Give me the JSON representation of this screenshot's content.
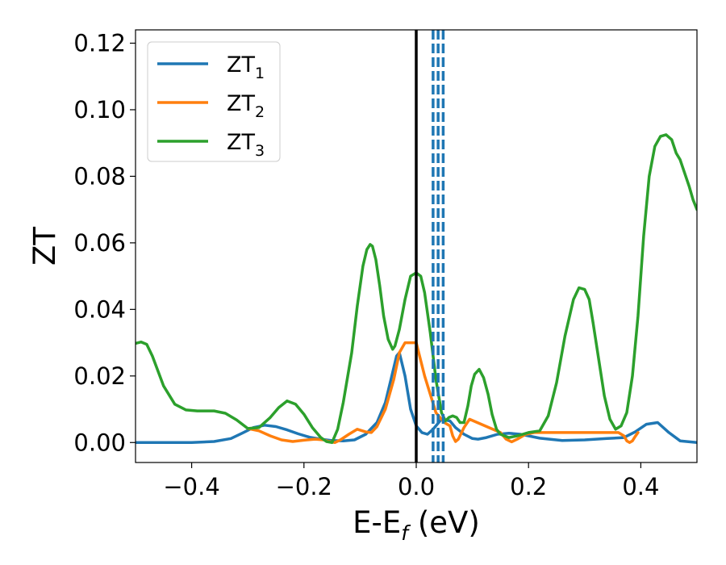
{
  "chart_data": {
    "type": "line",
    "xlabel": {
      "main": "E-E",
      "sub": "f",
      "unit": " (eV)"
    },
    "ylabel": "ZT",
    "xlim": [
      -0.5,
      0.5
    ],
    "ylim": [
      -0.006,
      0.124
    ],
    "xticks": [
      -0.4,
      -0.2,
      0.0,
      0.2,
      0.4
    ],
    "xtick_labels": [
      "−0.4",
      "−0.2",
      "0.0",
      "0.2",
      "0.4"
    ],
    "yticks": [
      0.0,
      0.02,
      0.04,
      0.06,
      0.08,
      0.1,
      0.12
    ],
    "ytick_labels": [
      "0.00",
      "0.02",
      "0.04",
      "0.06",
      "0.08",
      "0.10",
      "0.12"
    ],
    "grid": false,
    "legend": {
      "position": "top-left"
    },
    "series": [
      {
        "name": "ZT",
        "name_sub": "1",
        "color": "#1f77b4",
        "x": [
          -0.5,
          -0.45,
          -0.4,
          -0.36,
          -0.33,
          -0.31,
          -0.29,
          -0.27,
          -0.25,
          -0.23,
          -0.21,
          -0.19,
          -0.17,
          -0.15,
          -0.13,
          -0.11,
          -0.09,
          -0.07,
          -0.055,
          -0.045,
          -0.035,
          -0.03,
          -0.02,
          -0.01,
          0.0,
          0.01,
          0.02,
          0.03,
          0.045,
          0.06,
          0.07,
          0.085,
          0.1,
          0.11,
          0.125,
          0.145,
          0.165,
          0.185,
          0.2,
          0.22,
          0.26,
          0.3,
          0.34,
          0.37,
          0.39,
          0.41,
          0.43,
          0.45,
          0.47,
          0.5
        ],
        "y": [
          0.0,
          0.0,
          0.0,
          0.0003,
          0.0012,
          0.0028,
          0.0045,
          0.0052,
          0.0048,
          0.0038,
          0.0026,
          0.0016,
          0.001,
          0.0006,
          0.0005,
          0.0008,
          0.0025,
          0.006,
          0.012,
          0.019,
          0.026,
          0.027,
          0.02,
          0.01,
          0.005,
          0.003,
          0.0025,
          0.004,
          0.007,
          0.0065,
          0.0045,
          0.0025,
          0.0012,
          0.001,
          0.0015,
          0.0025,
          0.0028,
          0.0025,
          0.002,
          0.0013,
          0.0006,
          0.0008,
          0.0012,
          0.0015,
          0.0032,
          0.0055,
          0.006,
          0.003,
          0.0005,
          0.0
        ]
      },
      {
        "name": "ZT",
        "name_sub": "2",
        "color": "#ff7f0e",
        "x": [
          -0.3,
          -0.28,
          -0.26,
          -0.24,
          -0.22,
          -0.2,
          -0.18,
          -0.165,
          -0.155,
          -0.145,
          -0.135,
          -0.12,
          -0.105,
          -0.09,
          -0.08,
          -0.07,
          -0.055,
          -0.04,
          -0.03,
          -0.02,
          -0.01,
          0.0,
          0.015,
          0.035,
          0.05,
          0.06,
          0.065,
          0.07,
          0.075,
          0.085,
          0.095,
          0.15,
          0.16,
          0.17,
          0.18,
          0.195,
          0.21,
          0.36,
          0.37,
          0.375,
          0.38,
          0.385,
          0.39,
          0.395
        ],
        "y": [
          0.0042,
          0.0035,
          0.002,
          0.0008,
          0.0003,
          0.0007,
          0.001,
          0.0008,
          0.0003,
          0.0,
          0.0008,
          0.0025,
          0.004,
          0.0032,
          0.003,
          0.0048,
          0.01,
          0.019,
          0.027,
          0.03,
          0.03,
          0.03,
          0.02,
          0.009,
          0.006,
          0.005,
          0.002,
          0.0003,
          0.001,
          0.0045,
          0.007,
          0.003,
          0.001,
          0.0002,
          0.001,
          0.0025,
          0.003,
          0.003,
          0.002,
          0.0005,
          0.0,
          0.0005,
          0.0018,
          0.003
        ]
      },
      {
        "name": "ZT",
        "name_sub": "3",
        "color": "#2ca02c",
        "x": [
          -0.5,
          -0.49,
          -0.48,
          -0.47,
          -0.45,
          -0.43,
          -0.41,
          -0.39,
          -0.36,
          -0.34,
          -0.32,
          -0.3,
          -0.28,
          -0.26,
          -0.245,
          -0.23,
          -0.215,
          -0.2,
          -0.185,
          -0.17,
          -0.16,
          -0.15,
          -0.14,
          -0.13,
          -0.115,
          -0.105,
          -0.095,
          -0.088,
          -0.082,
          -0.078,
          -0.072,
          -0.065,
          -0.058,
          -0.05,
          -0.042,
          -0.038,
          -0.03,
          -0.02,
          -0.01,
          0.0,
          0.008,
          0.015,
          0.025,
          0.035,
          0.045,
          0.052,
          0.058,
          0.065,
          0.072,
          0.078,
          0.085,
          0.092,
          0.098,
          0.104,
          0.112,
          0.12,
          0.128,
          0.135,
          0.143,
          0.15,
          0.165,
          0.18,
          0.2,
          0.22,
          0.235,
          0.25,
          0.265,
          0.28,
          0.29,
          0.3,
          0.308,
          0.315,
          0.325,
          0.335,
          0.345,
          0.355,
          0.365,
          0.375,
          0.385,
          0.395,
          0.405,
          0.415,
          0.425,
          0.435,
          0.445,
          0.455,
          0.463,
          0.47,
          0.478,
          0.486,
          0.493,
          0.5
        ],
        "y": [
          0.0298,
          0.0302,
          0.0295,
          0.026,
          0.017,
          0.0115,
          0.0098,
          0.0095,
          0.0095,
          0.0088,
          0.0068,
          0.0042,
          0.0045,
          0.0075,
          0.0105,
          0.0125,
          0.0115,
          0.0085,
          0.0045,
          0.0015,
          0.0003,
          0.0,
          0.004,
          0.012,
          0.027,
          0.041,
          0.053,
          0.058,
          0.0595,
          0.059,
          0.055,
          0.047,
          0.038,
          0.031,
          0.028,
          0.029,
          0.034,
          0.043,
          0.05,
          0.051,
          0.05,
          0.045,
          0.033,
          0.019,
          0.009,
          0.0065,
          0.0075,
          0.008,
          0.0075,
          0.006,
          0.006,
          0.011,
          0.017,
          0.0205,
          0.022,
          0.0195,
          0.0145,
          0.0085,
          0.004,
          0.0025,
          0.0015,
          0.002,
          0.003,
          0.0035,
          0.008,
          0.018,
          0.032,
          0.043,
          0.0465,
          0.046,
          0.043,
          0.036,
          0.025,
          0.014,
          0.007,
          0.004,
          0.005,
          0.009,
          0.02,
          0.038,
          0.062,
          0.08,
          0.089,
          0.092,
          0.0925,
          0.091,
          0.087,
          0.085,
          0.081,
          0.077,
          0.073,
          0.07
        ]
      }
    ],
    "vlines": [
      {
        "x": 0.0,
        "color": "#000000",
        "style": "solid"
      },
      {
        "x": 0.03,
        "color": "#1f77b4",
        "style": "dashed"
      },
      {
        "x": 0.039,
        "color": "#1f77b4",
        "style": "dashed"
      },
      {
        "x": 0.048,
        "color": "#1f77b4",
        "style": "dashed"
      }
    ]
  }
}
